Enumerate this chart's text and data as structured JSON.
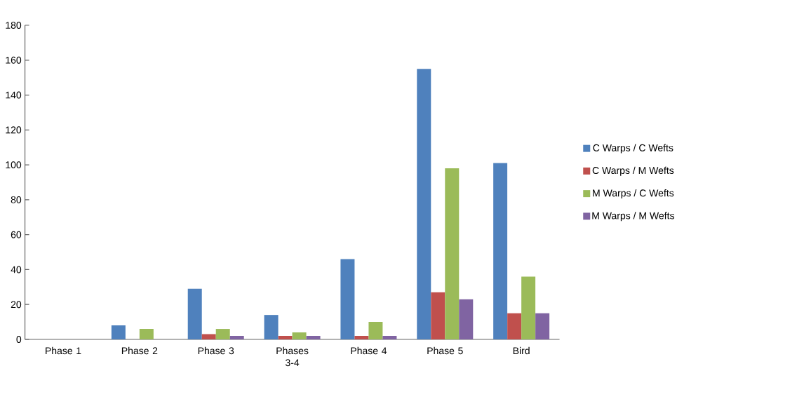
{
  "chart_data": {
    "type": "bar",
    "categories": [
      "Phase 1",
      "Phase 2",
      "Phase 3",
      "Phases 3-4",
      "Phase 4",
      "Phase 5",
      "Bird"
    ],
    "series": [
      {
        "name": "C Warps / C Wefts",
        "color": "#4f81bd",
        "values": [
          0,
          8,
          29,
          14,
          46,
          155,
          101
        ]
      },
      {
        "name": "C Warps / M Wefts",
        "color": "#c0504d",
        "values": [
          0,
          0,
          3,
          2,
          2,
          27,
          15
        ]
      },
      {
        "name": "M Warps / C Wefts",
        "color": "#9bbb59",
        "values": [
          0,
          6,
          6,
          4,
          10,
          98,
          36
        ]
      },
      {
        "name": "M Warps / M Wefts",
        "color": "#8064a2",
        "values": [
          0,
          0,
          2,
          2,
          2,
          23,
          15
        ]
      }
    ],
    "ylim": [
      0,
      180
    ],
    "yticks": [
      0,
      20,
      40,
      60,
      80,
      100,
      120,
      140,
      160,
      180
    ],
    "grid": false,
    "legend": "right"
  }
}
